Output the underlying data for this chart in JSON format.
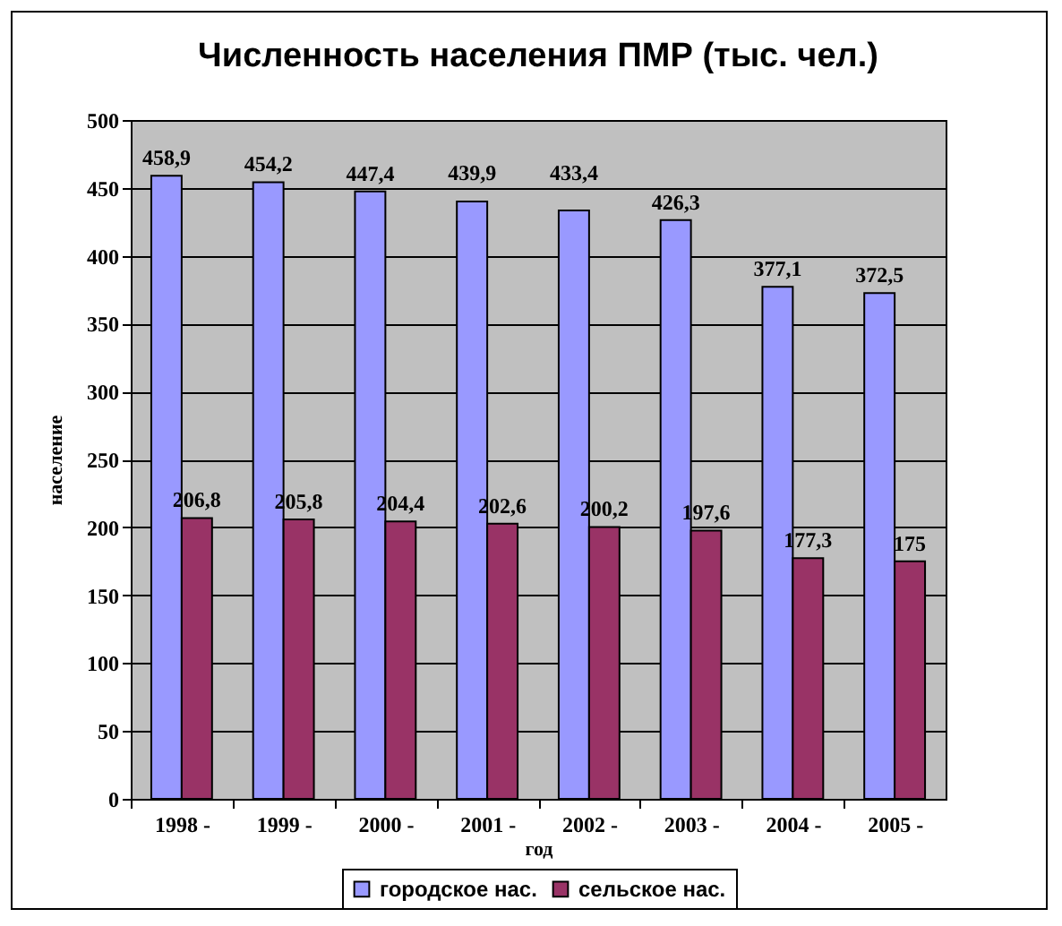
{
  "chart_data": {
    "type": "bar",
    "title": "Численность населения ПМР (тыс. чел.)",
    "xlabel": "год",
    "ylabel": "население",
    "categories": [
      "1998 -",
      "1999 -",
      "2000 -",
      "2001 -",
      "2002 -",
      "2003 -",
      "2004 -",
      "2005 -"
    ],
    "series": [
      {
        "name": "городское нас.",
        "color": "#9999ff",
        "values": [
          458.9,
          454.2,
          447.4,
          439.9,
          433.4,
          426.3,
          377.1,
          372.5
        ],
        "value_labels": [
          "458,9",
          "454,2",
          "447,4",
          "439,9",
          "433,4",
          "426,3",
          "377,1",
          "372,5"
        ]
      },
      {
        "name": "сельское нас.",
        "color": "#993366",
        "values": [
          206.8,
          205.8,
          204.4,
          202.6,
          200.2,
          197.6,
          177.3,
          175
        ],
        "value_labels": [
          "206,8",
          "205,8",
          "204,4",
          "202,6",
          "200,2",
          "197,6",
          "177,3",
          "175"
        ]
      }
    ],
    "ylim": [
      0,
      500
    ],
    "yticks": [
      0,
      50,
      100,
      150,
      200,
      250,
      300,
      350,
      400,
      450,
      500
    ],
    "grid": "y",
    "legend": "bottom"
  }
}
